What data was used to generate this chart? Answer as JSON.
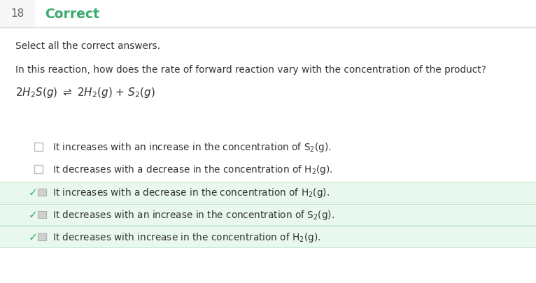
{
  "question_number": "18",
  "header_label": "Correct",
  "header_color": "#3aaa6e",
  "header_num_color": "#666666",
  "header_bg": "#f7f7f7",
  "instruction": "Select all the correct answers.",
  "question": "In this reaction, how does the rate of forward reaction vary with the concentration of the product?",
  "options": [
    {
      "text_before": "It increases with an increase in the concentration of S",
      "sub": "2",
      "text_after": "(g).",
      "correct": false,
      "highlighted": false
    },
    {
      "text_before": "It decreases with a decrease in the concentration of H",
      "sub": "2",
      "text_after": "(g).",
      "correct": false,
      "highlighted": false
    },
    {
      "text_before": "It increases with a decrease in the concentration of H",
      "sub": "2",
      "text_after": "(g).",
      "correct": true,
      "highlighted": true
    },
    {
      "text_before": "It decreases with an increase in the concentration of S",
      "sub": "2",
      "text_after": "(g).",
      "correct": true,
      "highlighted": true
    },
    {
      "text_before": "It decreases with increase in the concentration of H",
      "sub": "2",
      "text_after": "(g).",
      "correct": true,
      "highlighted": true
    }
  ],
  "bg_color": "#ffffff",
  "highlight_color": "#e8f8ee",
  "highlight_border": "#c5e8d0",
  "border_color": "#cccccc",
  "checkbox_border": "#bbbbbb",
  "checkbox_bg": "#f0f0f0",
  "check_color": "#3aaa6e",
  "text_color": "#333333",
  "divider_color": "#dddddd",
  "text_fontsize": 9.8,
  "header_fontsize": 13.5,
  "num_fontsize": 11
}
